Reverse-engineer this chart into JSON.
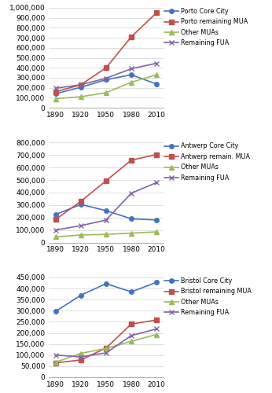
{
  "years": [
    1890,
    1920,
    1950,
    1980,
    2010
  ],
  "porto": {
    "core_city": [
      140000,
      205000,
      280000,
      330000,
      237000
    ],
    "remaining_mua": [
      160000,
      230000,
      400000,
      710000,
      950000
    ],
    "other_muas": [
      90000,
      110000,
      150000,
      255000,
      330000
    ],
    "remaining_fua": [
      195000,
      230000,
      295000,
      390000,
      445000
    ],
    "ylim": [
      0,
      1000000
    ],
    "yticks": [
      0,
      100000,
      200000,
      300000,
      400000,
      500000,
      600000,
      700000,
      800000,
      900000,
      1000000
    ],
    "legend_labels": [
      "Porto Core City",
      "Porto remaining MUA",
      "Other MUAs",
      "Remaining FUA"
    ]
  },
  "antwerp": {
    "core_city": [
      225000,
      305000,
      255000,
      190000,
      180000
    ],
    "remaining_mua": [
      185000,
      330000,
      495000,
      660000,
      705000
    ],
    "other_muas": [
      45000,
      60000,
      65000,
      75000,
      85000
    ],
    "remaining_fua": [
      100000,
      135000,
      180000,
      395000,
      480000
    ],
    "ylim": [
      0,
      800000
    ],
    "yticks": [
      0,
      100000,
      200000,
      300000,
      400000,
      500000,
      600000,
      700000,
      800000
    ],
    "legend_labels": [
      "Antwerp Core City",
      "Antwerp remain. MUA",
      "Other MUAs",
      "Remaining FUA"
    ]
  },
  "bristol": {
    "core_city": [
      297000,
      370000,
      422000,
      385000,
      428000
    ],
    "remaining_mua": [
      65000,
      78000,
      132000,
      240000,
      258000
    ],
    "other_muas": [
      68000,
      108000,
      130000,
      162000,
      193000
    ],
    "remaining_fua": [
      100000,
      92000,
      110000,
      188000,
      218000
    ],
    "ylim": [
      0,
      450000
    ],
    "yticks": [
      0,
      50000,
      100000,
      150000,
      200000,
      250000,
      300000,
      350000,
      400000,
      450000
    ],
    "legend_labels": [
      "Bristol Core City",
      "Bristol remaining MUA",
      "Other MUAs",
      "Remaining FUA"
    ]
  },
  "colors": [
    "#4472C4",
    "#C0504D",
    "#9BBB59",
    "#8064A2"
  ],
  "marker_core": "o",
  "marker_mua": "s",
  "marker_other": "^",
  "marker_fua": "x",
  "linewidth": 1.2,
  "markersize": 4,
  "xticks": [
    1890,
    1920,
    1950,
    1980,
    2010
  ]
}
